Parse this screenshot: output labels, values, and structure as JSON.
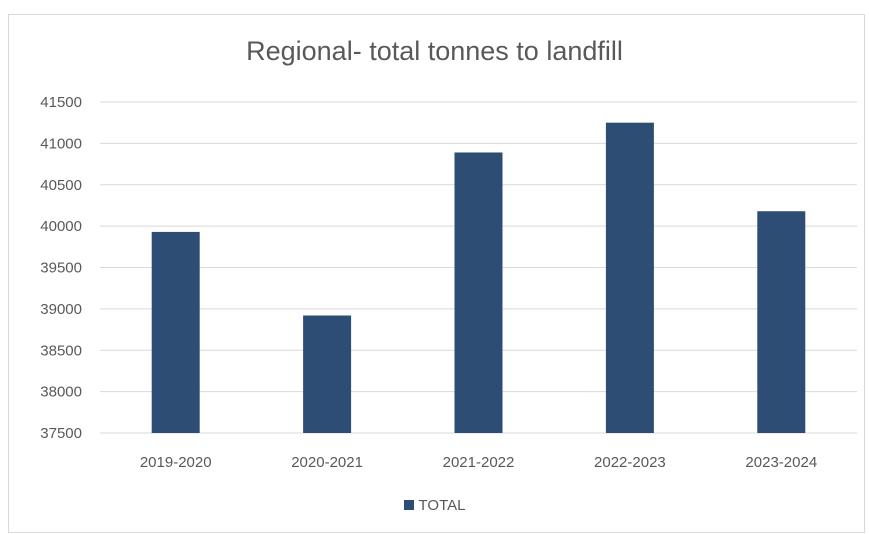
{
  "chart_data": {
    "type": "bar",
    "title": "Regional- total tonnes to landfill",
    "xlabel": "",
    "ylabel": "",
    "categories": [
      "2019-2020",
      "2020-2021",
      "2021-2022",
      "2022-2023",
      "2023-2024"
    ],
    "series": [
      {
        "name": "TOTAL",
        "values": [
          39930,
          38920,
          40890,
          41250,
          40180
        ],
        "color": "#2e4d74"
      }
    ],
    "ylim": [
      37500,
      41500
    ],
    "yticks": [
      "37500",
      "38000",
      "38500",
      "39000",
      "39500",
      "40000",
      "40500",
      "41000",
      "41500"
    ],
    "grid": true,
    "legend_position": "bottom"
  }
}
